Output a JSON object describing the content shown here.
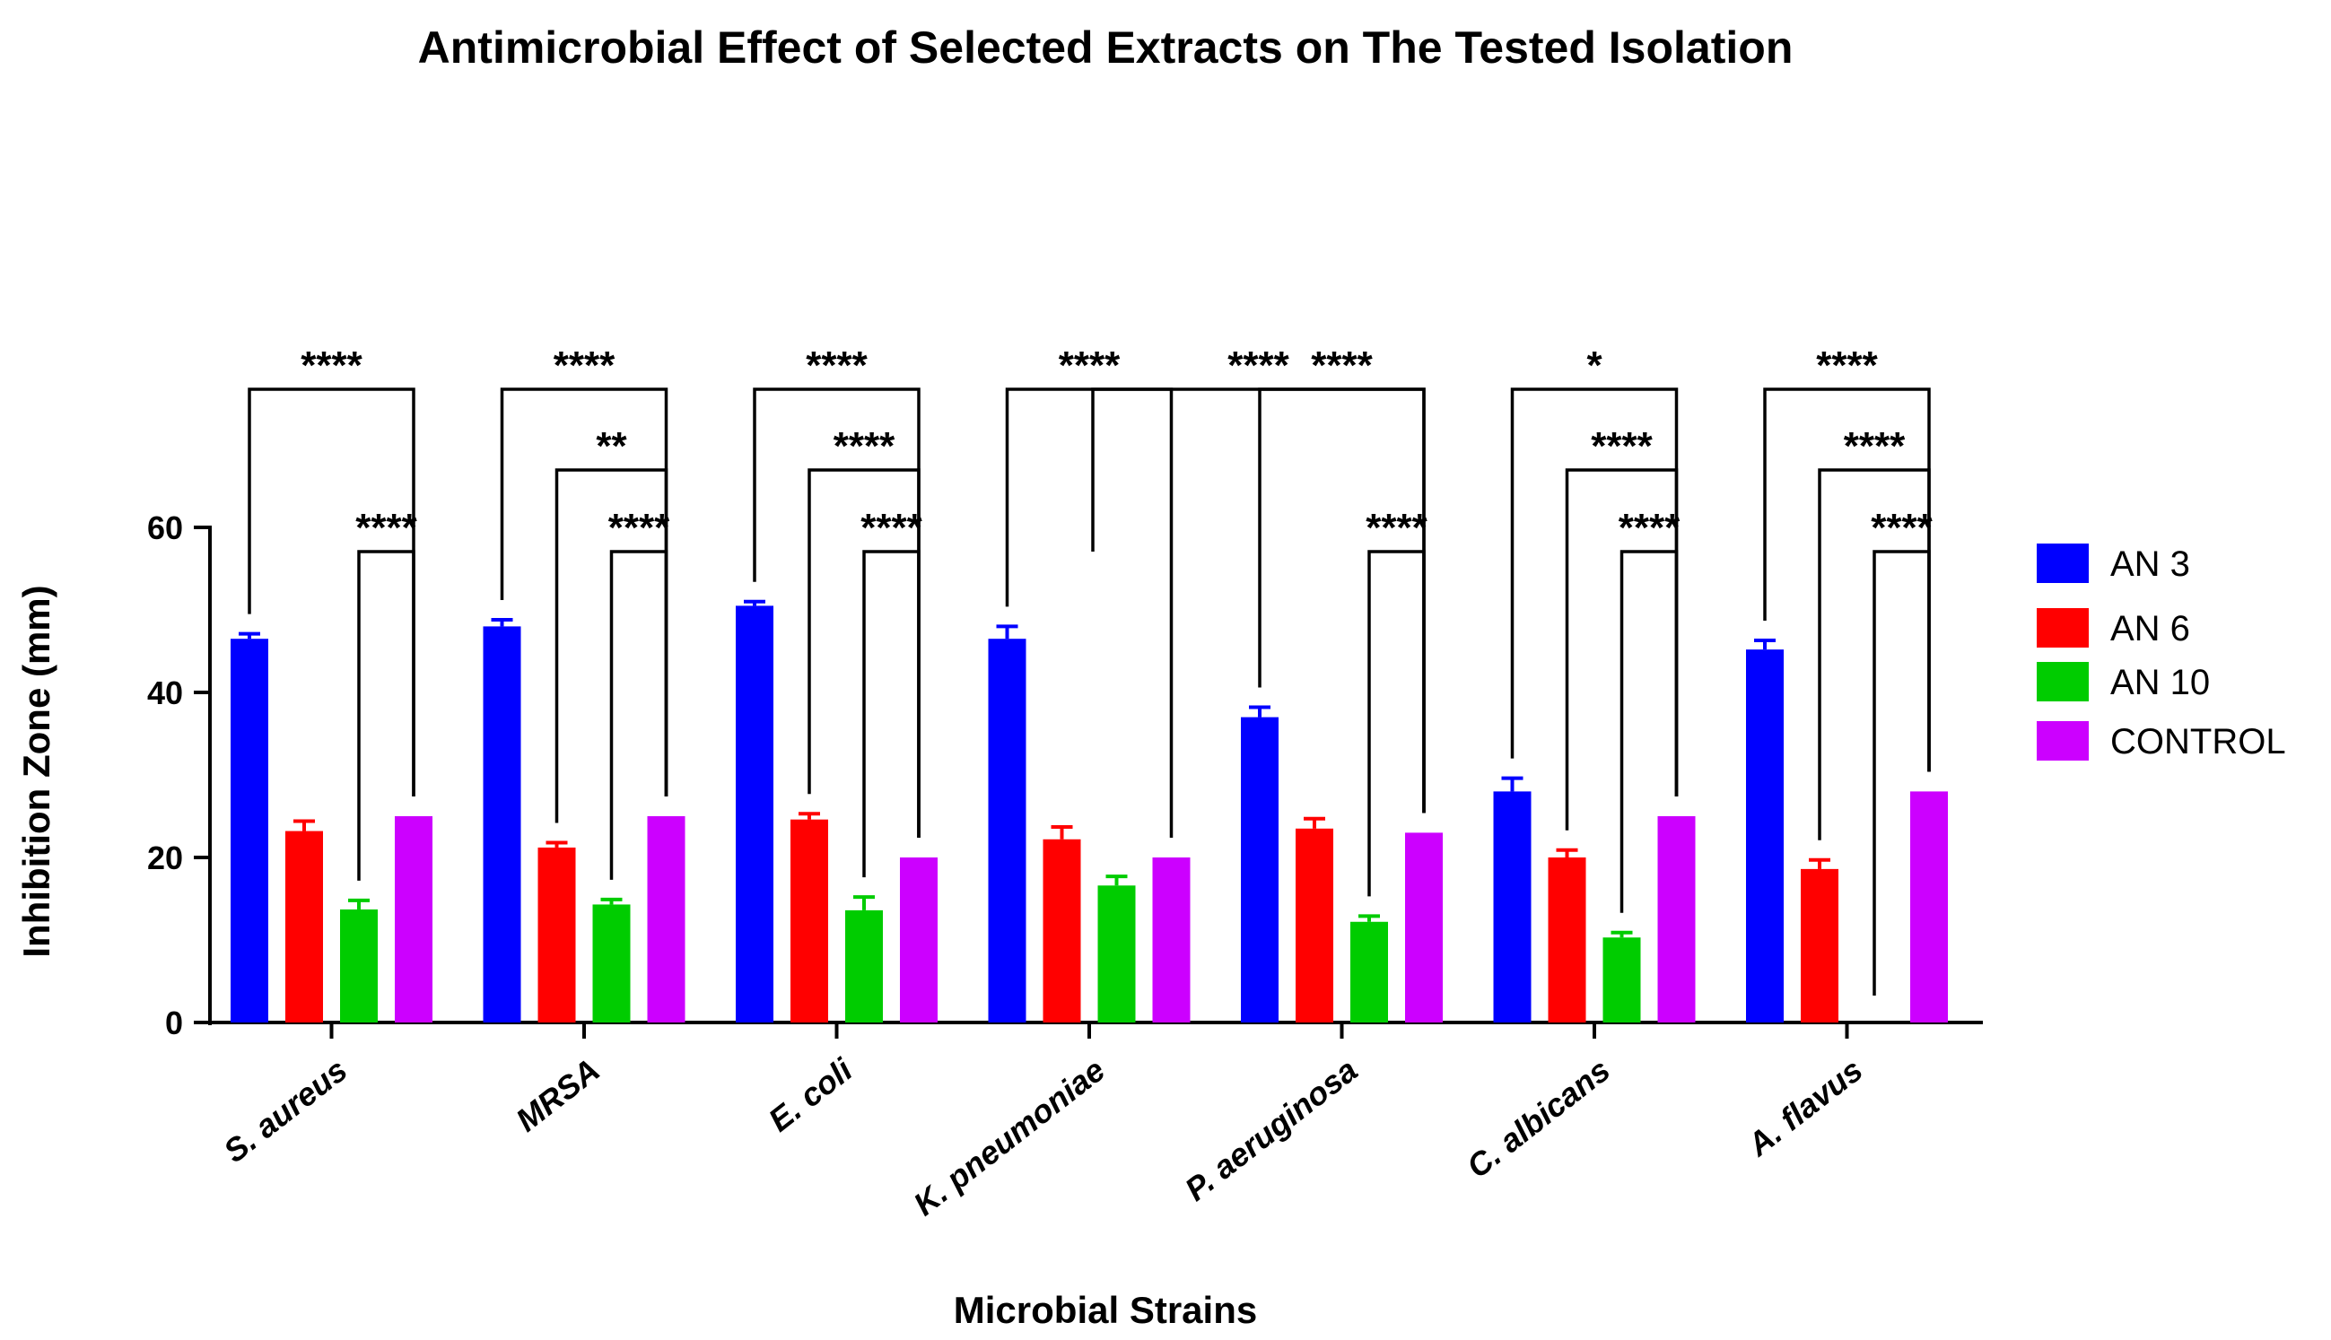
{
  "chart_data": {
    "type": "bar",
    "title": "Antimicrobial Effect of Selected Extracts on The Tested Isolation",
    "xlabel": "Microbial Strains",
    "ylabel": "Inhibition Zone (mm)",
    "ylim": [
      0,
      60
    ],
    "yticks": [
      0,
      20,
      40,
      60
    ],
    "legend_position": "right",
    "categories": [
      "S. aureus",
      "MRSA",
      "E. coli",
      "K. pneumoniae",
      "P. aeruginosa",
      "C. albicans",
      "A. flavus"
    ],
    "series": [
      {
        "name": "AN 3",
        "color": "#0000FF",
        "values": [
          46.5,
          48,
          50.5,
          46.5,
          37,
          28,
          45.2
        ],
        "errors": [
          0.6,
          0.8,
          0.5,
          1.5,
          1.2,
          1.6,
          1.1
        ]
      },
      {
        "name": "AN 6",
        "color": "#FF0000",
        "values": [
          23.2,
          21.2,
          24.6,
          22.2,
          23.5,
          20,
          18.6
        ],
        "errors": [
          1.2,
          0.6,
          0.7,
          1.5,
          1.2,
          0.9,
          1.1
        ]
      },
      {
        "name": "AN 10",
        "color": "#00CC00",
        "values": [
          13.7,
          14.3,
          13.6,
          16.6,
          12.2,
          10.3,
          0
        ],
        "errors": [
          1.1,
          0.6,
          1.6,
          1.1,
          0.7,
          0.6,
          0
        ]
      },
      {
        "name": "CONTROL",
        "color": "#CC00FF",
        "values": [
          25,
          25,
          20,
          20,
          23,
          25,
          28
        ],
        "errors": [
          0,
          0,
          0,
          0,
          0,
          0,
          0
        ]
      }
    ],
    "significance": [
      {
        "category": 0,
        "from": 0,
        "to": 3,
        "label": "****"
      },
      {
        "category": 0,
        "from": 2,
        "to": 3,
        "label": "****"
      },
      {
        "category": 1,
        "from": 0,
        "to": 3,
        "label": "****"
      },
      {
        "category": 1,
        "from": 1,
        "to": 3,
        "label": "**"
      },
      {
        "category": 1,
        "from": 2,
        "to": 3,
        "label": "****"
      },
      {
        "category": 2,
        "from": 0,
        "to": 3,
        "label": "****"
      },
      {
        "category": 2,
        "from": 1,
        "to": 3,
        "label": "****"
      },
      {
        "category": 2,
        "from": 2,
        "to": 3,
        "label": "****"
      },
      {
        "category": 3,
        "from": 0,
        "to": 3,
        "label": "****"
      },
      {
        "category": 3,
        "from": 2,
        "to": 3,
        "label": "****",
        "span_to_category": 4
      },
      {
        "category": 4,
        "from": 0,
        "to": 3,
        "label": "****"
      },
      {
        "category": 4,
        "from": 2,
        "to": 3,
        "label": "****"
      },
      {
        "category": 5,
        "from": 0,
        "to": 3,
        "label": "*"
      },
      {
        "category": 5,
        "from": 1,
        "to": 3,
        "label": "****"
      },
      {
        "category": 5,
        "from": 2,
        "to": 3,
        "label": "****"
      },
      {
        "category": 6,
        "from": 0,
        "to": 3,
        "label": "****"
      },
      {
        "category": 6,
        "from": 1,
        "to": 3,
        "label": "****"
      },
      {
        "category": 6,
        "from": 2,
        "to": 3,
        "label": "****"
      }
    ]
  }
}
